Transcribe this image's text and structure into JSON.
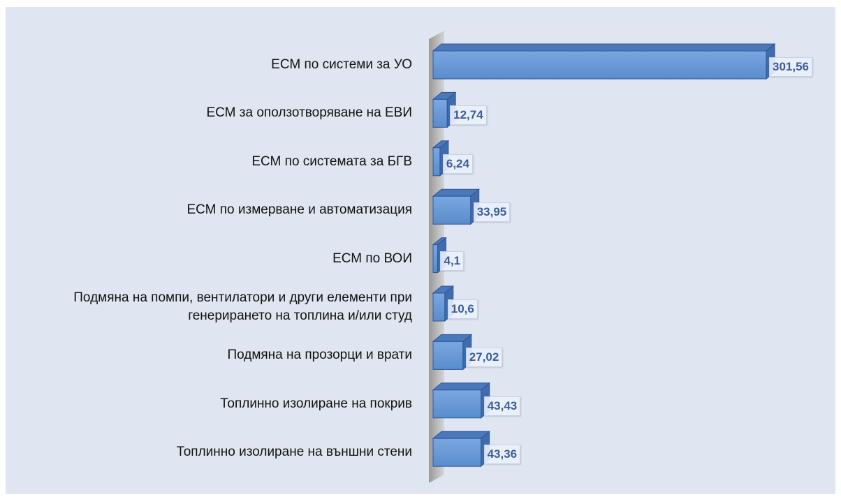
{
  "chart_data": {
    "type": "bar3d",
    "orientation": "horizontal",
    "categories": [
      "ЕСМ по системи за УО",
      "ЕСМ за оползотворяване на ЕВИ",
      "ЕСМ по системата за БГВ",
      "ЕСМ по измерване и автоматизация",
      "ЕСМ по ВОИ",
      "Подмяна на помпи, вентилатори и други елементи при\nгенерирането на топлина и/или студ",
      "Подмяна на прозорци и врати",
      "Топлинно изолиране на покрив",
      "Топлинно изолиране на външни стени"
    ],
    "values": [
      301.56,
      12.74,
      6.24,
      33.95,
      4.1,
      10.6,
      27.02,
      43.43,
      43.36
    ],
    "value_labels": [
      "301,56",
      "12,74",
      "6,24",
      "33,95",
      "4,1",
      "10,6",
      "27,02",
      "43,43",
      "43,36"
    ],
    "color": "#5b8fd0"
  }
}
